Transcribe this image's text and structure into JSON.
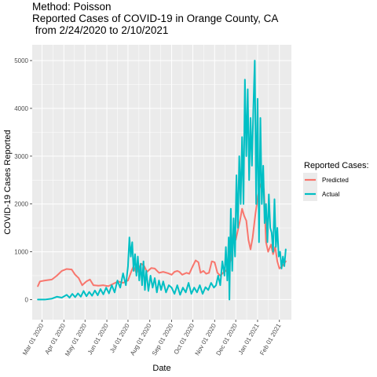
{
  "chart_data": {
    "type": "line",
    "title_lines": [
      "Method: Poisson",
      "Reported Cases of COVID-19 in Orange County, CA",
      " from 2/24/2020 to 2/10/2021"
    ],
    "xlabel": "Date",
    "ylabel": "COVID-19 Cases Reported",
    "x_range": [
      "2020-02-16",
      "2021-02-18"
    ],
    "ylim": [
      -420,
      5330
    ],
    "y_ticks": [
      0,
      1000,
      2000,
      3000,
      4000,
      5000
    ],
    "x_ticks": [
      {
        "date": "2020-03-01",
        "label": "Mar 01 2020"
      },
      {
        "date": "2020-04-01",
        "label": "Apr 01 2020"
      },
      {
        "date": "2020-05-01",
        "label": "May 01 2020"
      },
      {
        "date": "2020-06-01",
        "label": "Jun 01 2020"
      },
      {
        "date": "2020-07-01",
        "label": "Jul 01 2020"
      },
      {
        "date": "2020-08-01",
        "label": "Aug 01 2020"
      },
      {
        "date": "2020-09-01",
        "label": "Sep 01 2020"
      },
      {
        "date": "2020-10-01",
        "label": "Oct 01 2020"
      },
      {
        "date": "2020-11-01",
        "label": "Nov 01 2020"
      },
      {
        "date": "2020-12-01",
        "label": "Dec 01 2020"
      },
      {
        "date": "2021-01-01",
        "label": "Jan 01 2021"
      },
      {
        "date": "2021-02-01",
        "label": "Feb 01 2021"
      }
    ],
    "grid": true,
    "legend": {
      "title": "Reported Cases:",
      "position": "right"
    },
    "series": [
      {
        "name": "Predicted",
        "color": "#f8766d",
        "points": [
          [
            "2020-02-24",
            280
          ],
          [
            "2020-02-27",
            380
          ],
          [
            "2020-03-05",
            400
          ],
          [
            "2020-03-15",
            420
          ],
          [
            "2020-03-22",
            500
          ],
          [
            "2020-03-29",
            600
          ],
          [
            "2020-04-05",
            640
          ],
          [
            "2020-04-12",
            630
          ],
          [
            "2020-04-17",
            520
          ],
          [
            "2020-04-22",
            450
          ],
          [
            "2020-04-27",
            300
          ],
          [
            "2020-05-03",
            380
          ],
          [
            "2020-05-08",
            420
          ],
          [
            "2020-05-13",
            300
          ],
          [
            "2020-05-20",
            290
          ],
          [
            "2020-05-27",
            300
          ],
          [
            "2020-06-03",
            280
          ],
          [
            "2020-06-10",
            330
          ],
          [
            "2020-06-17",
            380
          ],
          [
            "2020-06-24",
            350
          ],
          [
            "2020-07-01",
            400
          ],
          [
            "2020-07-06",
            600
          ],
          [
            "2020-07-09",
            700
          ],
          [
            "2020-07-13",
            550
          ],
          [
            "2020-07-16",
            650
          ],
          [
            "2020-07-20",
            750
          ],
          [
            "2020-07-24",
            700
          ],
          [
            "2020-07-28",
            580
          ],
          [
            "2020-08-03",
            660
          ],
          [
            "2020-08-08",
            650
          ],
          [
            "2020-08-14",
            560
          ],
          [
            "2020-08-20",
            580
          ],
          [
            "2020-08-27",
            550
          ],
          [
            "2020-09-01",
            520
          ],
          [
            "2020-09-05",
            580
          ],
          [
            "2020-09-09",
            600
          ],
          [
            "2020-09-12",
            580
          ],
          [
            "2020-09-16",
            520
          ],
          [
            "2020-09-22",
            560
          ],
          [
            "2020-09-26",
            540
          ],
          [
            "2020-10-01",
            700
          ],
          [
            "2020-10-05",
            820
          ],
          [
            "2020-10-09",
            780
          ],
          [
            "2020-10-12",
            560
          ],
          [
            "2020-10-16",
            600
          ],
          [
            "2020-10-20",
            540
          ],
          [
            "2020-10-24",
            560
          ],
          [
            "2020-10-28",
            800
          ],
          [
            "2020-11-01",
            780
          ],
          [
            "2020-11-05",
            560
          ],
          [
            "2020-11-09",
            500
          ],
          [
            "2020-11-13",
            560
          ],
          [
            "2020-11-17",
            600
          ],
          [
            "2020-11-21",
            680
          ],
          [
            "2020-11-25",
            900
          ],
          [
            "2020-11-28",
            1500
          ],
          [
            "2020-12-01",
            1250
          ],
          [
            "2020-12-04",
            1450
          ],
          [
            "2020-12-07",
            1650
          ],
          [
            "2020-12-10",
            1900
          ],
          [
            "2020-12-13",
            1750
          ],
          [
            "2020-12-16",
            1650
          ],
          [
            "2020-12-19",
            1250
          ],
          [
            "2020-12-22",
            1050
          ],
          [
            "2020-12-25",
            1300
          ],
          [
            "2020-12-29",
            1800
          ],
          [
            "2021-01-02",
            2200
          ],
          [
            "2021-01-05",
            2400
          ],
          [
            "2021-01-08",
            2450
          ],
          [
            "2021-01-10",
            2300
          ],
          [
            "2021-01-13",
            1200
          ],
          [
            "2021-01-16",
            1000
          ],
          [
            "2021-01-20",
            1150
          ],
          [
            "2021-01-23",
            950
          ],
          [
            "2021-01-26",
            1100
          ],
          [
            "2021-01-29",
            800
          ],
          [
            "2021-02-01",
            650
          ],
          [
            "2021-02-05",
            700
          ],
          [
            "2021-02-10",
            800
          ]
        ]
      },
      {
        "name": "Actual",
        "color": "#00bfc4",
        "points": [
          [
            "2020-02-24",
            0
          ],
          [
            "2020-03-05",
            0
          ],
          [
            "2020-03-15",
            20
          ],
          [
            "2020-03-22",
            60
          ],
          [
            "2020-03-29",
            40
          ],
          [
            "2020-04-05",
            100
          ],
          [
            "2020-04-09",
            40
          ],
          [
            "2020-04-13",
            120
          ],
          [
            "2020-04-17",
            50
          ],
          [
            "2020-04-21",
            130
          ],
          [
            "2020-04-25",
            60
          ],
          [
            "2020-04-29",
            180
          ],
          [
            "2020-05-03",
            70
          ],
          [
            "2020-05-07",
            160
          ],
          [
            "2020-05-11",
            80
          ],
          [
            "2020-05-15",
            190
          ],
          [
            "2020-05-19",
            90
          ],
          [
            "2020-05-23",
            220
          ],
          [
            "2020-05-27",
            110
          ],
          [
            "2020-05-31",
            250
          ],
          [
            "2020-06-04",
            130
          ],
          [
            "2020-06-08",
            300
          ],
          [
            "2020-06-12",
            150
          ],
          [
            "2020-06-16",
            400
          ],
          [
            "2020-06-20",
            250
          ],
          [
            "2020-06-24",
            550
          ],
          [
            "2020-06-28",
            300
          ],
          [
            "2020-07-01",
            700
          ],
          [
            "2020-07-03",
            1300
          ],
          [
            "2020-07-05",
            900
          ],
          [
            "2020-07-07",
            1200
          ],
          [
            "2020-07-09",
            600
          ],
          [
            "2020-07-11",
            950
          ],
          [
            "2020-07-13",
            500
          ],
          [
            "2020-07-15",
            900
          ],
          [
            "2020-07-17",
            400
          ],
          [
            "2020-07-19",
            750
          ],
          [
            "2020-07-21",
            300
          ],
          [
            "2020-07-23",
            800
          ],
          [
            "2020-07-25",
            200
          ],
          [
            "2020-07-27",
            600
          ],
          [
            "2020-07-30",
            180
          ],
          [
            "2020-08-02",
            500
          ],
          [
            "2020-08-05",
            250
          ],
          [
            "2020-08-08",
            450
          ],
          [
            "2020-08-11",
            150
          ],
          [
            "2020-08-14",
            400
          ],
          [
            "2020-08-17",
            200
          ],
          [
            "2020-08-20",
            380
          ],
          [
            "2020-08-24",
            150
          ],
          [
            "2020-08-28",
            300
          ],
          [
            "2020-09-01",
            250
          ],
          [
            "2020-09-05",
            120
          ],
          [
            "2020-09-09",
            300
          ],
          [
            "2020-09-13",
            100
          ],
          [
            "2020-09-17",
            250
          ],
          [
            "2020-09-21",
            150
          ],
          [
            "2020-09-25",
            350
          ],
          [
            "2020-09-29",
            120
          ],
          [
            "2020-10-03",
            250
          ],
          [
            "2020-10-07",
            150
          ],
          [
            "2020-10-11",
            300
          ],
          [
            "2020-10-15",
            120
          ],
          [
            "2020-10-19",
            260
          ],
          [
            "2020-10-23",
            200
          ],
          [
            "2020-10-27",
            350
          ],
          [
            "2020-10-31",
            250
          ],
          [
            "2020-11-03",
            300
          ],
          [
            "2020-11-06",
            500
          ],
          [
            "2020-11-09",
            300
          ],
          [
            "2020-11-12",
            800
          ],
          [
            "2020-11-15",
            500
          ],
          [
            "2020-11-17",
            1100
          ],
          [
            "2020-11-19",
            400
          ],
          [
            "2020-11-21",
            1300
          ],
          [
            "2020-11-22",
            0
          ],
          [
            "2020-11-24",
            1900
          ],
          [
            "2020-11-26",
            600
          ],
          [
            "2020-11-28",
            1700
          ],
          [
            "2020-11-30",
            900
          ],
          [
            "2020-12-02",
            2600
          ],
          [
            "2020-12-04",
            1500
          ],
          [
            "2020-12-06",
            3000
          ],
          [
            "2020-12-08",
            2000
          ],
          [
            "2020-12-10",
            3400
          ],
          [
            "2020-12-12",
            2000
          ],
          [
            "2020-12-14",
            4600
          ],
          [
            "2020-12-16",
            3000
          ],
          [
            "2020-12-18",
            4400
          ],
          [
            "2020-12-20",
            2500
          ],
          [
            "2020-12-22",
            3800
          ],
          [
            "2020-12-24",
            2800
          ],
          [
            "2020-12-26",
            4000
          ],
          [
            "2020-12-28",
            5000
          ],
          [
            "2020-12-30",
            2000
          ],
          [
            "2021-01-01",
            4200
          ],
          [
            "2021-01-03",
            1200
          ],
          [
            "2021-01-05",
            3800
          ],
          [
            "2021-01-07",
            2000
          ],
          [
            "2021-01-09",
            2800
          ],
          [
            "2021-01-11",
            1600
          ],
          [
            "2021-01-13",
            2000
          ],
          [
            "2021-01-15",
            1200
          ],
          [
            "2021-01-17",
            2200
          ],
          [
            "2021-01-19",
            1500
          ],
          [
            "2021-01-21",
            1400
          ],
          [
            "2021-01-23",
            1000
          ],
          [
            "2021-01-25",
            2100
          ],
          [
            "2021-01-27",
            1100
          ],
          [
            "2021-01-29",
            1500
          ],
          [
            "2021-01-31",
            900
          ],
          [
            "2021-02-02",
            1000
          ],
          [
            "2021-02-04",
            650
          ],
          [
            "2021-02-06",
            900
          ],
          [
            "2021-02-08",
            700
          ],
          [
            "2021-02-10",
            1050
          ]
        ]
      }
    ]
  }
}
